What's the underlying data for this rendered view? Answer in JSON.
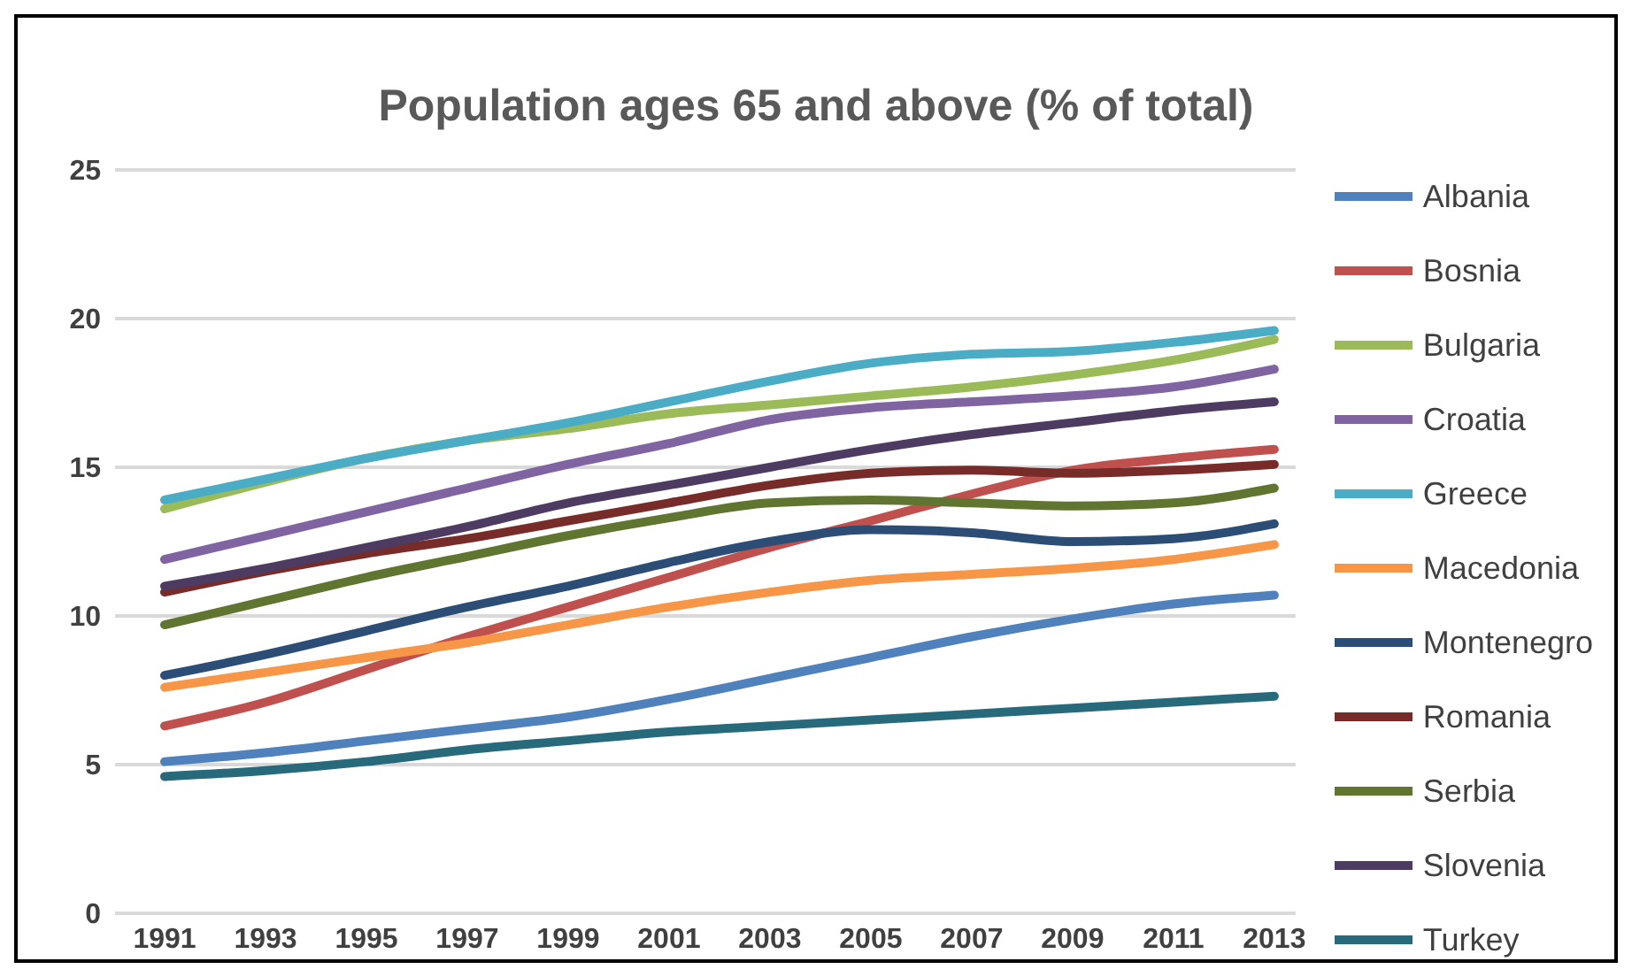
{
  "chart_data": {
    "type": "line",
    "title": "Population ages 65 and above (% of total)",
    "categories": [
      "1991",
      "1993",
      "1995",
      "1997",
      "1999",
      "2001",
      "2003",
      "2005",
      "2007",
      "2009",
      "2011",
      "2013"
    ],
    "ylim": [
      0,
      25
    ],
    "yticks": [
      0,
      5,
      10,
      15,
      20,
      25
    ],
    "grid": "y",
    "legend": "right",
    "marker": "none",
    "line_style": "solid",
    "series": [
      {
        "name": "Albania",
        "color": "#4f81bd",
        "values": [
          5.1,
          5.4,
          5.8,
          6.2,
          6.6,
          7.2,
          7.9,
          8.6,
          9.3,
          9.9,
          10.4,
          10.7
        ]
      },
      {
        "name": "Bosnia",
        "color": "#c0504d",
        "values": [
          6.3,
          7.1,
          8.2,
          9.3,
          10.3,
          11.3,
          12.3,
          13.2,
          14.1,
          14.9,
          15.3,
          15.6
        ]
      },
      {
        "name": "Bulgaria",
        "color": "#9bbb59",
        "values": [
          13.6,
          14.5,
          15.3,
          15.9,
          16.3,
          16.8,
          17.1,
          17.4,
          17.7,
          18.1,
          18.6,
          19.3
        ]
      },
      {
        "name": "Croatia",
        "color": "#8064a2",
        "values": [
          11.9,
          12.7,
          13.5,
          14.3,
          15.1,
          15.8,
          16.6,
          17.0,
          17.2,
          17.4,
          17.7,
          18.3
        ]
      },
      {
        "name": "Greece",
        "color": "#4bacc6",
        "values": [
          13.9,
          14.6,
          15.3,
          15.9,
          16.5,
          17.2,
          17.9,
          18.5,
          18.8,
          18.9,
          19.2,
          19.6
        ]
      },
      {
        "name": "Macedonia",
        "color": "#f79646",
        "values": [
          7.6,
          8.1,
          8.6,
          9.1,
          9.7,
          10.3,
          10.8,
          11.2,
          11.4,
          11.6,
          11.9,
          12.4
        ]
      },
      {
        "name": "Montenegro",
        "color": "#2c4d75",
        "values": [
          8.0,
          8.7,
          9.5,
          10.3,
          11.0,
          11.8,
          12.5,
          12.9,
          12.8,
          12.5,
          12.6,
          13.1
        ]
      },
      {
        "name": "Romania",
        "color": "#772c2a",
        "values": [
          10.8,
          11.5,
          12.1,
          12.6,
          13.2,
          13.8,
          14.4,
          14.8,
          14.9,
          14.8,
          14.9,
          15.1
        ]
      },
      {
        "name": "Serbia",
        "color": "#5f7530",
        "values": [
          9.7,
          10.5,
          11.3,
          12.0,
          12.7,
          13.3,
          13.8,
          13.9,
          13.8,
          13.7,
          13.8,
          14.3
        ]
      },
      {
        "name": "Slovenia",
        "color": "#4d3b62",
        "values": [
          11.0,
          11.6,
          12.3,
          13.0,
          13.8,
          14.4,
          15.0,
          15.6,
          16.1,
          16.5,
          16.9,
          17.2
        ]
      },
      {
        "name": "Turkey",
        "color": "#276a7c",
        "values": [
          4.6,
          4.8,
          5.1,
          5.5,
          5.8,
          6.1,
          6.3,
          6.5,
          6.7,
          6.9,
          7.1,
          7.3
        ]
      }
    ]
  }
}
